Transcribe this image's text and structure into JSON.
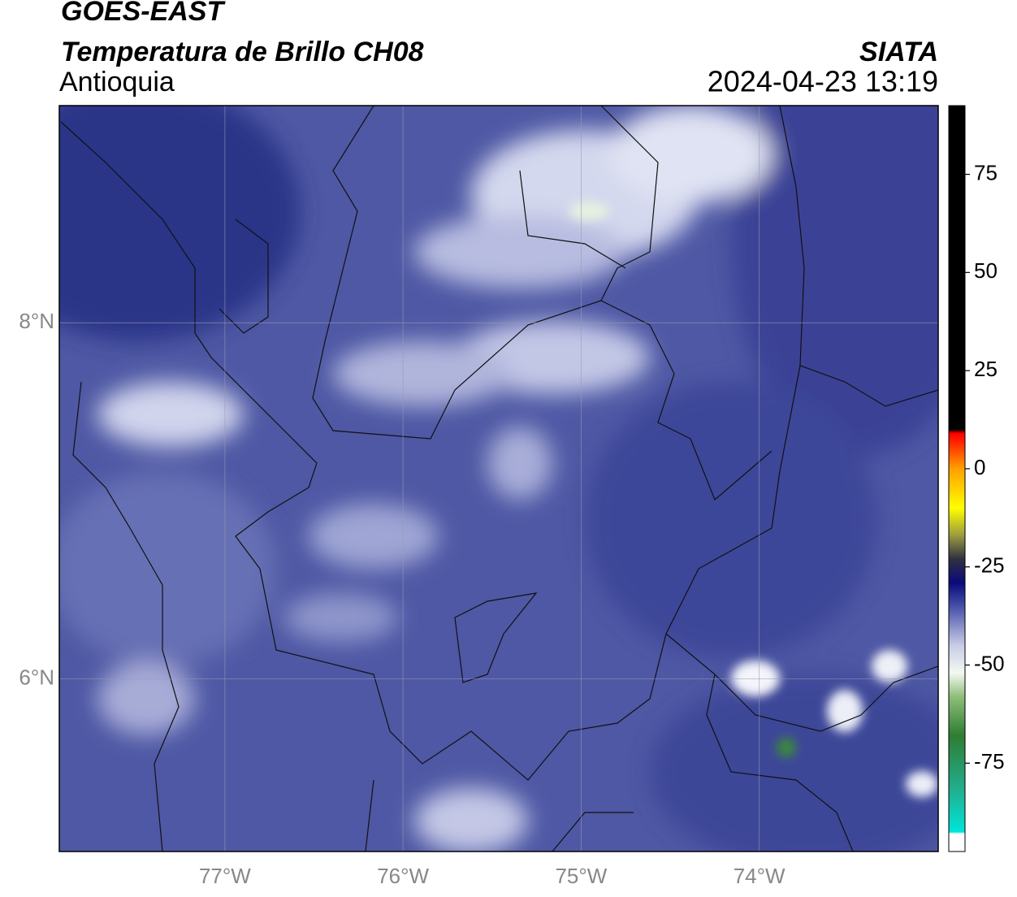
{
  "header": {
    "satellite": "GOES-EAST",
    "product": "Temperatura de Brillo CH08",
    "region": "Antioquia",
    "source": "SIATA",
    "datetime": "2024-04-23 13:19"
  },
  "map": {
    "lonlim": [
      -77.93,
      -72.995
    ],
    "latlim": [
      5.03,
      9.22
    ],
    "lonticks": [
      {
        "value": -77,
        "label": "77°W"
      },
      {
        "value": -76,
        "label": "76°W"
      },
      {
        "value": -75,
        "label": "75°W"
      },
      {
        "value": -74,
        "label": "74°W"
      }
    ],
    "latticks": [
      {
        "value": 8,
        "label": "8°N"
      },
      {
        "value": 6,
        "label": "6°N"
      }
    ],
    "grid": true
  },
  "colorbar": {
    "lim": [
      -97.5,
      92.5
    ],
    "ticks": [
      75,
      50,
      25,
      0,
      -25,
      -50,
      -75
    ],
    "stops": [
      {
        "value": -97.5,
        "color": "#ffffff"
      },
      {
        "value": -93,
        "color": "#ffffff"
      },
      {
        "value": -92.5,
        "color": "#00e5d8"
      },
      {
        "value": -82,
        "color": "#20b090"
      },
      {
        "value": -68,
        "color": "#2e7d32"
      },
      {
        "value": -58,
        "color": "#8fbf7a"
      },
      {
        "value": -52,
        "color": "#f4f8f2"
      },
      {
        "value": -45,
        "color": "#c8cce6"
      },
      {
        "value": -35,
        "color": "#4650a8"
      },
      {
        "value": -29,
        "color": "#0a0a7a"
      },
      {
        "value": -23,
        "color": "#303040"
      },
      {
        "value": -17,
        "color": "#9a9a40"
      },
      {
        "value": -10,
        "color": "#ffff00"
      },
      {
        "value": 0,
        "color": "#ffa000"
      },
      {
        "value": 7,
        "color": "#ff2000"
      },
      {
        "value": 9,
        "color": "#ff0000"
      },
      {
        "value": 10,
        "color": "#000000"
      },
      {
        "value": 92.5,
        "color": "#000000"
      }
    ]
  }
}
